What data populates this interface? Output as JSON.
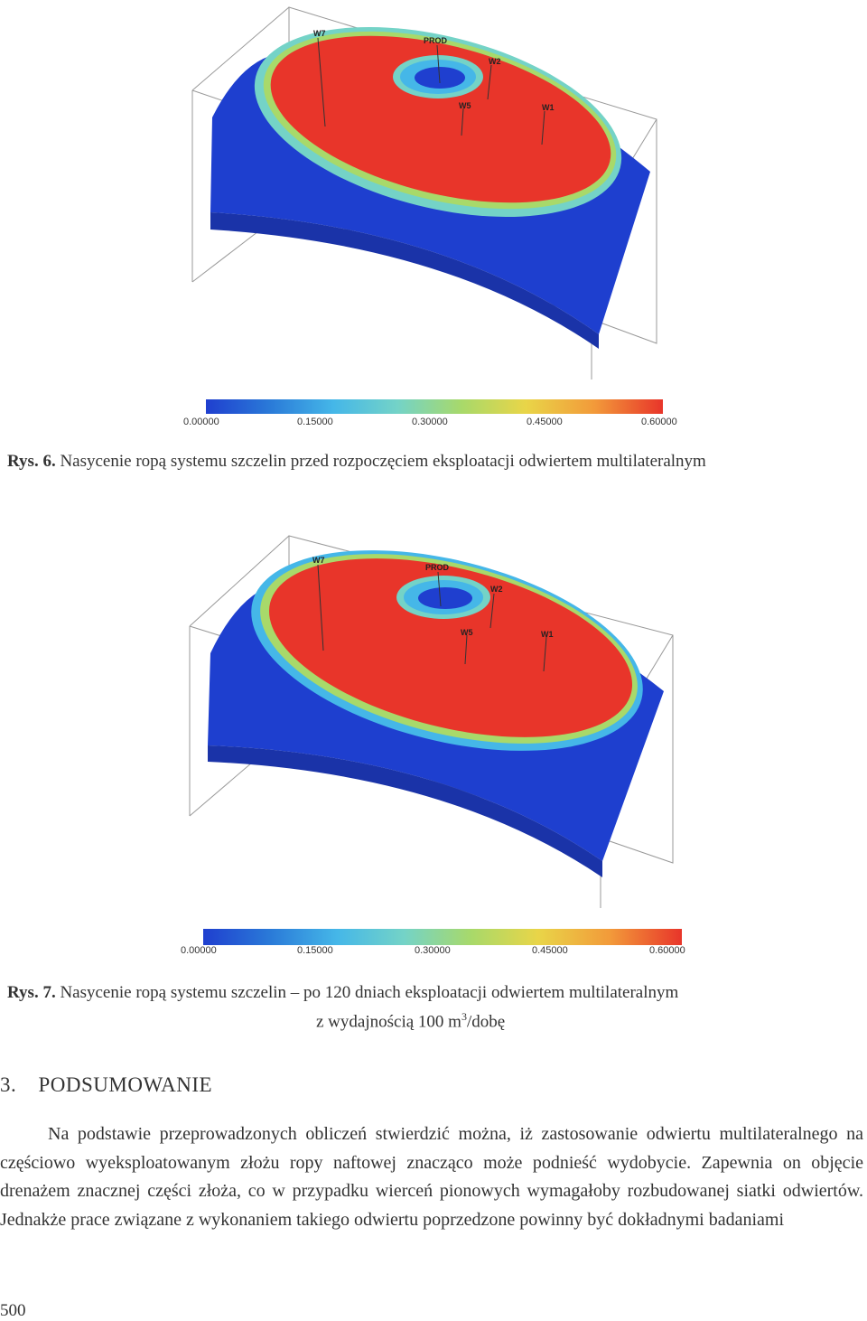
{
  "figures": [
    {
      "id": "rys6",
      "wells": [
        "W7",
        "PROD",
        "W2",
        "W5",
        "W1"
      ],
      "colorbar_ticks": [
        "0.00000",
        "0.15000",
        "0.30000",
        "0.45000",
        "0.60000"
      ],
      "caption_label": "Rys. 6.",
      "caption_text": "Nasycenie ropą systemu szczelin przed rozpoczęciem eksploatacji odwiertem multilateralnym"
    },
    {
      "id": "rys7",
      "wells": [
        "W7",
        "PROD",
        "W2",
        "W5",
        "W1"
      ],
      "colorbar_ticks": [
        "0.00000",
        "0.15000",
        "0.30000",
        "0.45000",
        "0.60000"
      ],
      "caption_label": "Rys. 7.",
      "caption_text": "Nasycenie ropą systemu szczelin – po 120 dniach eksploatacji odwiertem multilateralnym",
      "caption_line2_pre": "z wydajnością 100 m",
      "caption_line2_sup": "3",
      "caption_line2_post": "/dobę"
    }
  ],
  "colorscale": [
    "#1f3fcf",
    "#2a7ad8",
    "#45b7e8",
    "#74d3c7",
    "#a8d96a",
    "#e9d548",
    "#f29a3a",
    "#e8352a"
  ],
  "section": {
    "number": "3.",
    "title": "PODSUMOWANIE"
  },
  "paragraph": "Na podstawie przeprowadzonych obliczeń stwierdzić można, iż zastosowanie odwiertu multilateralnego na częściowo wyeksploatowanym złożu ropy naftowej znacząco może podnieść wydobycie. Zapewnia on objęcie drenażem znacznej części złoża, co w przypadku wierceń pionowych wymagałoby rozbudowanej siatki odwiertów. Jednakże prace związane z wykonaniem takiego odwiertu poprzedzone powinny być dokładnymi badaniami",
  "page_number": "500"
}
